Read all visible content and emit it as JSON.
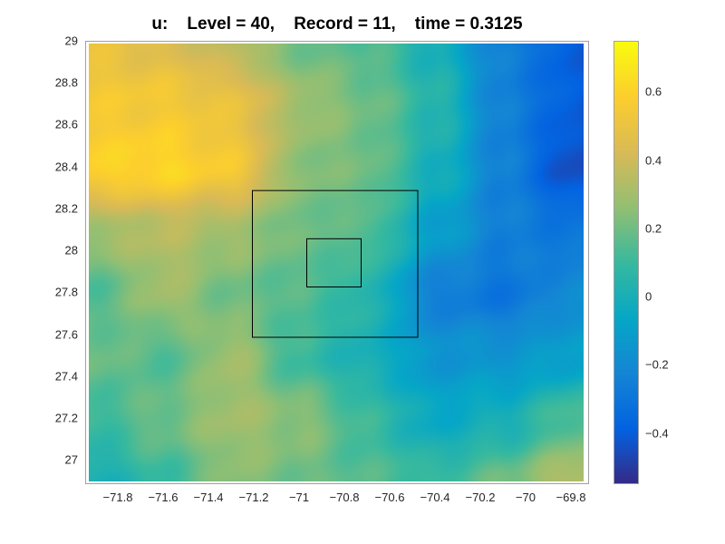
{
  "chart_data": {
    "type": "heatmap",
    "title": "u:    Level = 40,    Record = 11,    time = 0.3125",
    "xlabel": "",
    "ylabel": "",
    "xlim": [
      -71.944,
      -69.72
    ],
    "ylim": [
      26.885,
      29.0
    ],
    "xticks": [
      -71.8,
      -71.6,
      -71.4,
      -71.2,
      -71,
      -70.8,
      -70.6,
      -70.4,
      -70.2,
      -70,
      -69.8
    ],
    "xtick_labels": [
      "−71.8",
      "−71.6",
      "−71.4",
      "−71.2",
      "−71",
      "−70.8",
      "−70.6",
      "−70.4",
      "−70.2",
      "−70",
      "−69.8"
    ],
    "yticks": [
      27,
      27.2,
      27.4,
      27.6,
      27.8,
      28,
      28.2,
      28.4,
      28.6,
      28.8,
      29
    ],
    "ytick_labels": [
      "27",
      "27.2",
      "27.4",
      "27.6",
      "27.8",
      "28",
      "28.2",
      "28.4",
      "28.6",
      "28.8",
      "29"
    ],
    "grid_lon": [
      -71.9,
      -71.6,
      -71.3,
      -71.0,
      -70.7,
      -70.4,
      -70.1,
      -69.8
    ],
    "grid_lat": [
      29.0,
      28.7,
      28.4,
      28.1,
      27.8,
      27.5,
      27.2,
      26.9
    ],
    "values": [
      [
        0.5,
        0.45,
        0.35,
        0.2,
        0.15,
        0.0,
        -0.25,
        -0.4
      ],
      [
        0.55,
        0.55,
        0.5,
        0.3,
        0.2,
        0.05,
        -0.25,
        -0.4
      ],
      [
        0.6,
        0.62,
        0.55,
        0.25,
        0.2,
        0.0,
        -0.25,
        -0.45
      ],
      [
        0.3,
        0.35,
        0.3,
        0.2,
        0.15,
        -0.1,
        -0.25,
        -0.3
      ],
      [
        0.15,
        0.3,
        0.2,
        0.15,
        0.05,
        -0.25,
        -0.3,
        -0.2
      ],
      [
        0.2,
        0.15,
        0.3,
        0.1,
        0.0,
        -0.15,
        -0.15,
        -0.1
      ],
      [
        0.1,
        0.2,
        0.3,
        0.25,
        0.1,
        -0.05,
        0.0,
        0.15
      ],
      [
        0.0,
        0.1,
        0.25,
        0.2,
        0.15,
        0.1,
        0.2,
        0.35
      ]
    ],
    "boxes": [
      {
        "name": "outer-box",
        "lon": [
          -71.21,
          -70.48
        ],
        "lat": [
          27.59,
          28.29
        ]
      },
      {
        "name": "inner-box",
        "lon": [
          -70.97,
          -70.73
        ],
        "lat": [
          27.83,
          28.06
        ]
      }
    ],
    "colorbar": {
      "clim": [
        -0.55,
        0.75
      ],
      "ticks": [
        -0.4,
        -0.2,
        0,
        0.2,
        0.4,
        0.6
      ],
      "tick_labels": [
        "−0.4",
        "−0.2",
        "0",
        "0.2",
        "0.4",
        "0.6"
      ],
      "colormap": "parula",
      "placement": "right"
    }
  },
  "colors": {
    "parula": [
      "#352A87",
      "#0363E1",
      "#1485D4",
      "#06A7C6",
      "#38B99E",
      "#92BF73",
      "#D9BA56",
      "#FCCE2E",
      "#F9FB0E"
    ],
    "box_line": "#000000"
  }
}
